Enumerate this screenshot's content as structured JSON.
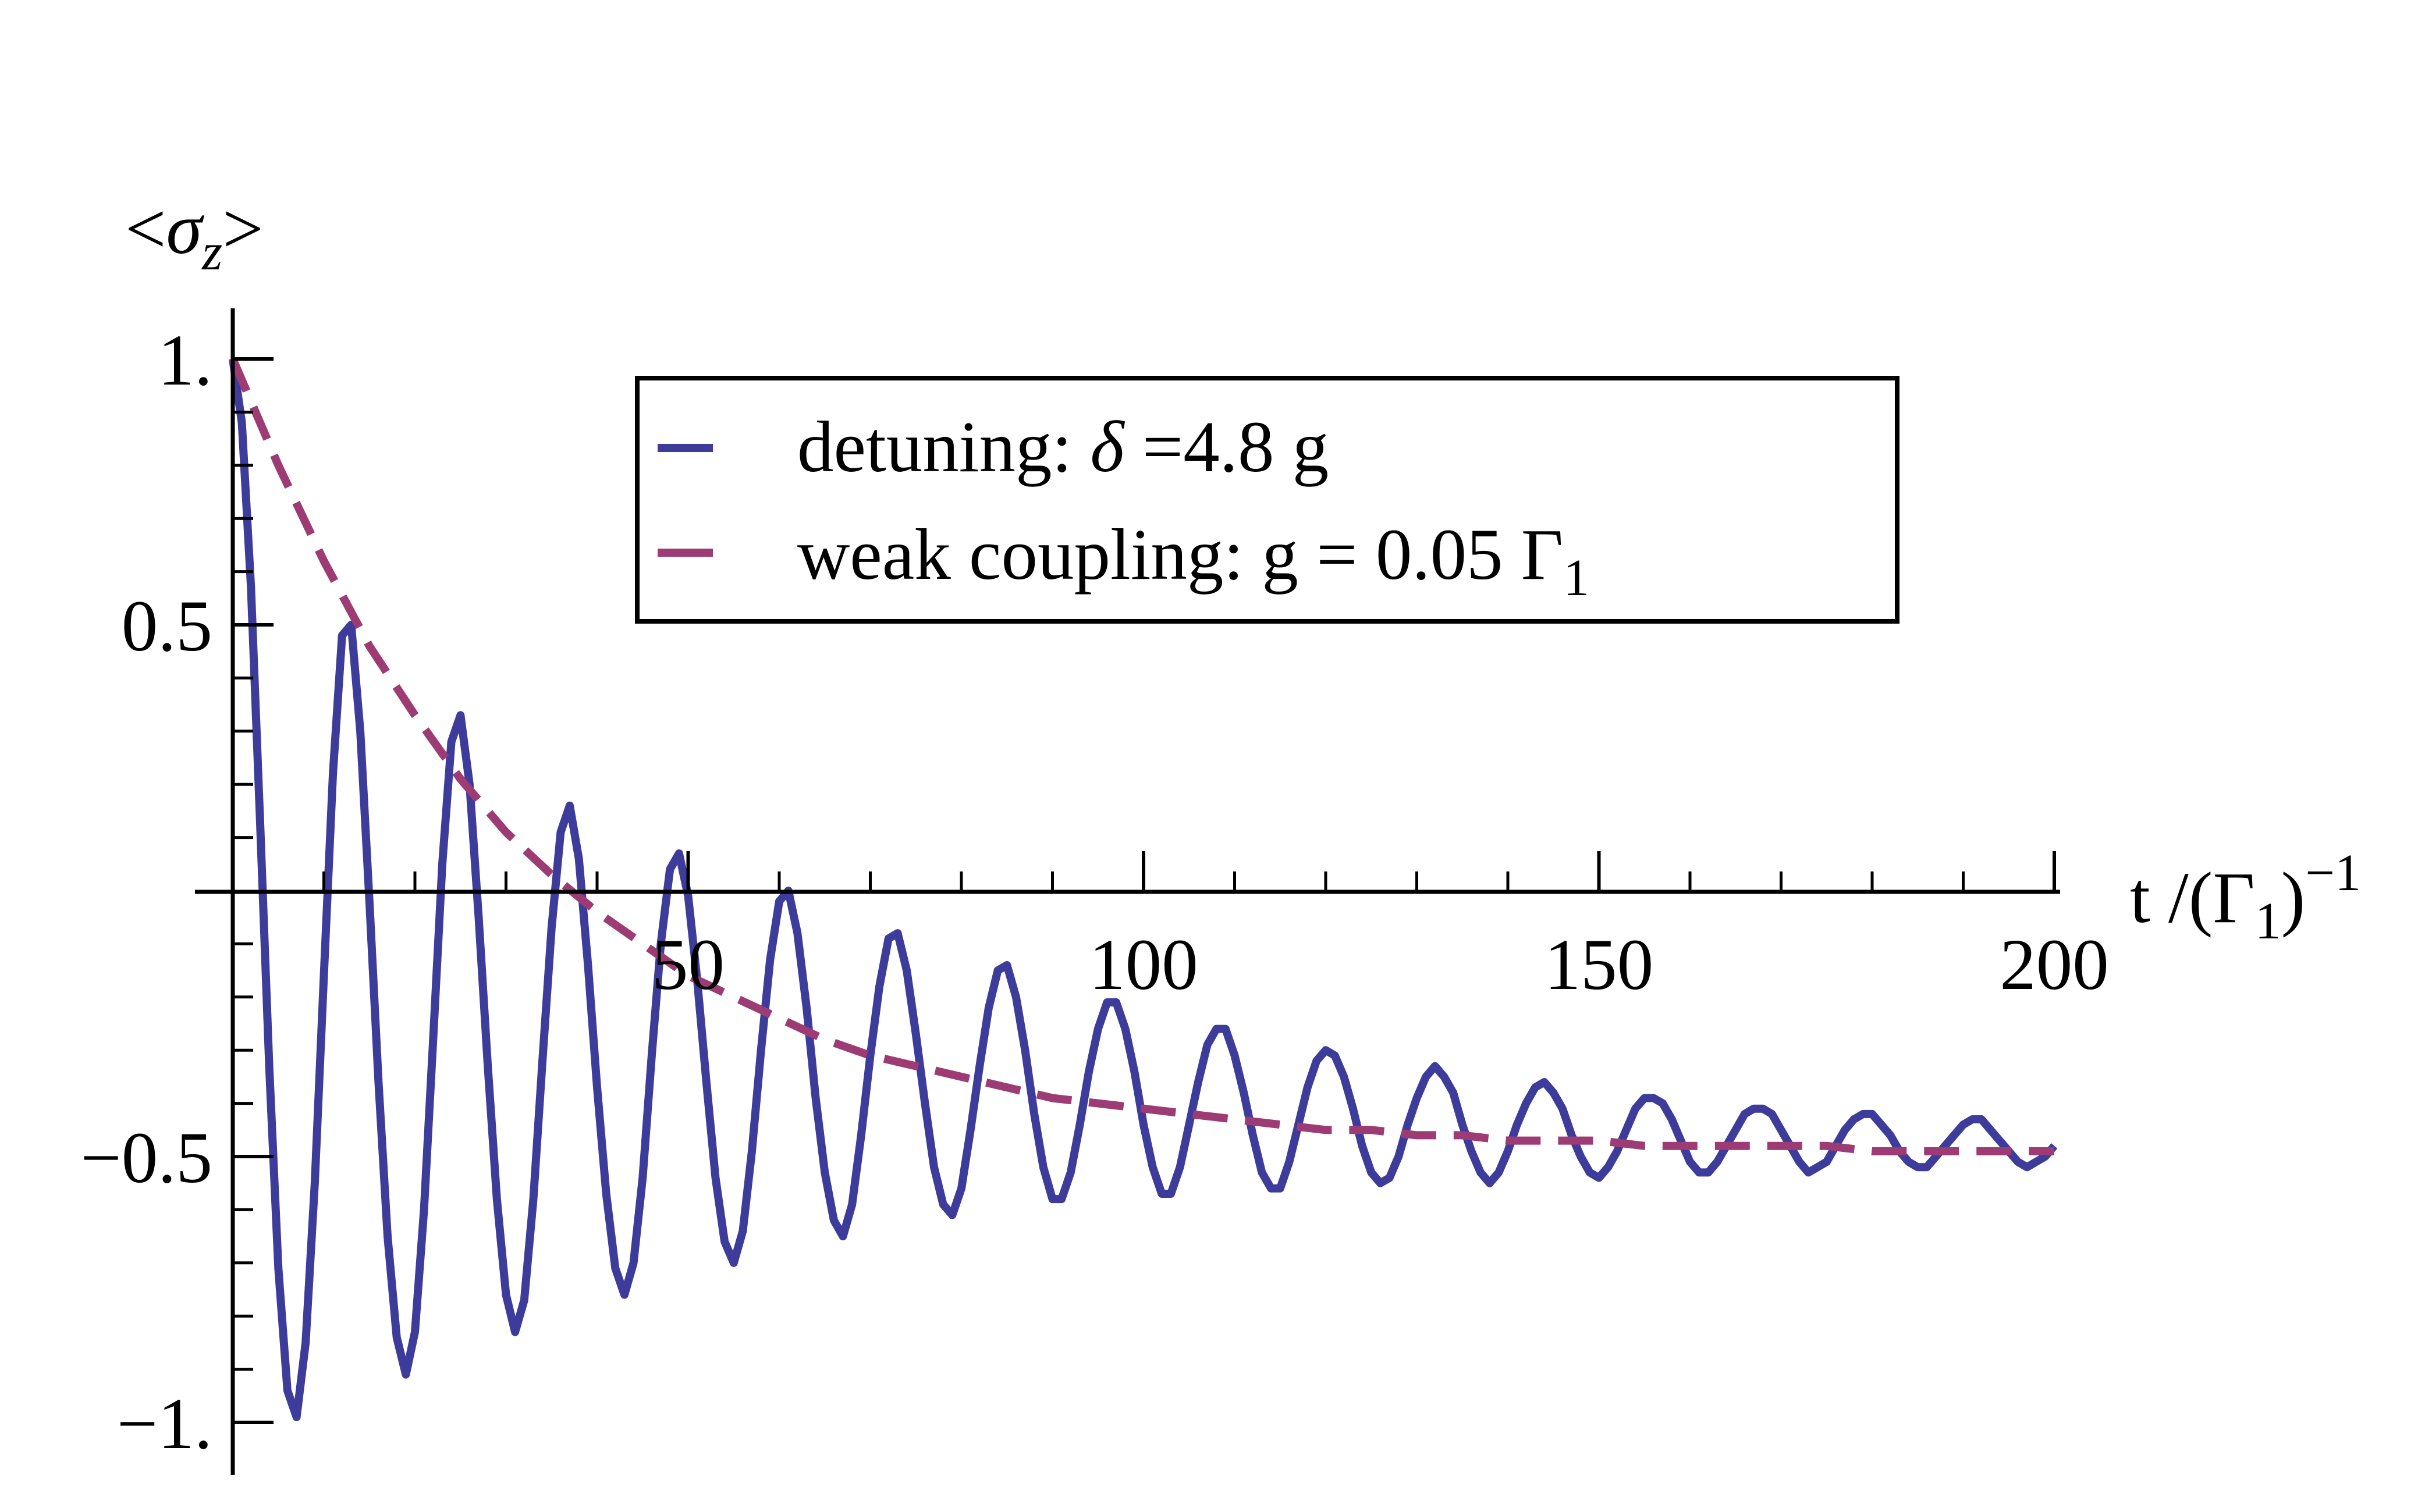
{
  "chart_data": {
    "type": "line",
    "ylabel": {
      "prefix": "<",
      "symbol": "σ",
      "subscript": "z",
      "suffix": ">"
    },
    "xlabel": {
      "prefix": "t /(Γ",
      "subscript": "1",
      "suffix": ")",
      "superscript": "−1"
    },
    "xlim": [
      0,
      200
    ],
    "ylim": [
      -1,
      1
    ],
    "x_ticks": [
      {
        "value": 50,
        "label": "50"
      },
      {
        "value": 100,
        "label": "100"
      },
      {
        "value": 150,
        "label": "150"
      },
      {
        "value": 200,
        "label": "200"
      }
    ],
    "y_ticks": [
      {
        "value": 1,
        "label": "1."
      },
      {
        "value": 0.5,
        "label": "0.5"
      },
      {
        "value": -0.5,
        "label": "−0.5"
      },
      {
        "value": -1,
        "label": "−1."
      }
    ],
    "x_minor_step": 10,
    "y_minor_step": 0.1,
    "grid": false,
    "legend_position": "top-center",
    "series": [
      {
        "label": {
          "prefix": "detuning: ",
          "symbol": "δ",
          "suffix": " =4.8 g"
        },
        "color": "#3d3c9b",
        "style": "solid",
        "envelope": "(1+e^(-t/40))/2",
        "period": 15.7,
        "damping_time": 38,
        "x": [
          0,
          1,
          2,
          3,
          4,
          5,
          6,
          7,
          8,
          9,
          10,
          11,
          12,
          13,
          14,
          15,
          16,
          17,
          18,
          19,
          20,
          21,
          22,
          23,
          24,
          25,
          26,
          27,
          28,
          29,
          30,
          31,
          32,
          33,
          34,
          35,
          36,
          37,
          38,
          39,
          40,
          41,
          42,
          43,
          44,
          45,
          46,
          47,
          48,
          49,
          50,
          51,
          52,
          53,
          54,
          55,
          56,
          57,
          58,
          59,
          60,
          61,
          62,
          63,
          64,
          65,
          66,
          67,
          68,
          69,
          70,
          71,
          72,
          73,
          74,
          75,
          76,
          77,
          78,
          79,
          80,
          81,
          82,
          83,
          84,
          85,
          86,
          87,
          88,
          89,
          90,
          91,
          92,
          93,
          94,
          95,
          96,
          97,
          98,
          99,
          100,
          101,
          102,
          103,
          104,
          105,
          106,
          107,
          108,
          109,
          110,
          111,
          112,
          113,
          114,
          115,
          116,
          117,
          118,
          119,
          120,
          121,
          122,
          123,
          124,
          125,
          126,
          127,
          128,
          129,
          130,
          131,
          132,
          133,
          134,
          135,
          136,
          137,
          138,
          139,
          140,
          141,
          142,
          143,
          144,
          145,
          146,
          147,
          148,
          149,
          150,
          151,
          152,
          153,
          154,
          155,
          156,
          157,
          158,
          159,
          160,
          161,
          162,
          163,
          164,
          165,
          166,
          167,
          168,
          169,
          170,
          171,
          172,
          173,
          174,
          175,
          176,
          177,
          178,
          179,
          180,
          181,
          182,
          183,
          184,
          185,
          186,
          187,
          188,
          189,
          190,
          191,
          192,
          193,
          194,
          195,
          196,
          197,
          198,
          199,
          200
        ],
        "y": [
          1.0,
          0.88,
          0.57,
          0.13,
          -0.33,
          -0.71,
          -0.94,
          -0.99,
          -0.85,
          -0.55,
          -0.16,
          0.22,
          0.48,
          0.5,
          0.3,
          -0.02,
          -0.36,
          -0.65,
          -0.84,
          -0.91,
          -0.83,
          -0.6,
          -0.28,
          0.05,
          0.28,
          0.33,
          0.2,
          -0.05,
          -0.33,
          -0.58,
          -0.76,
          -0.83,
          -0.77,
          -0.58,
          -0.32,
          -0.07,
          0.11,
          0.16,
          0.06,
          -0.14,
          -0.37,
          -0.57,
          -0.71,
          -0.76,
          -0.7,
          -0.54,
          -0.31,
          -0.1,
          0.04,
          0.07,
          -0.01,
          -0.17,
          -0.36,
          -0.54,
          -0.66,
          -0.7,
          -0.64,
          -0.49,
          -0.3,
          -0.13,
          -0.02,
          0.0,
          -0.08,
          -0.22,
          -0.39,
          -0.53,
          -0.62,
          -0.65,
          -0.59,
          -0.46,
          -0.31,
          -0.18,
          -0.09,
          -0.08,
          -0.15,
          -0.27,
          -0.4,
          -0.52,
          -0.59,
          -0.61,
          -0.56,
          -0.45,
          -0.33,
          -0.22,
          -0.15,
          -0.14,
          -0.2,
          -0.3,
          -0.42,
          -0.52,
          -0.58,
          -0.58,
          -0.53,
          -0.44,
          -0.34,
          -0.26,
          -0.21,
          -0.21,
          -0.26,
          -0.34,
          -0.44,
          -0.52,
          -0.57,
          -0.57,
          -0.52,
          -0.44,
          -0.36,
          -0.29,
          -0.26,
          -0.26,
          -0.31,
          -0.38,
          -0.46,
          -0.53,
          -0.56,
          -0.56,
          -0.51,
          -0.44,
          -0.37,
          -0.32,
          -0.3,
          -0.31,
          -0.35,
          -0.41,
          -0.48,
          -0.53,
          -0.55,
          -0.54,
          -0.5,
          -0.44,
          -0.39,
          -0.35,
          -0.33,
          -0.35,
          -0.38,
          -0.44,
          -0.49,
          -0.53,
          -0.55,
          -0.53,
          -0.49,
          -0.44,
          -0.4,
          -0.37,
          -0.36,
          -0.38,
          -0.41,
          -0.46,
          -0.5,
          -0.53,
          -0.54,
          -0.52,
          -0.49,
          -0.45,
          -0.41,
          -0.39,
          -0.39,
          -0.4,
          -0.43,
          -0.47,
          -0.51,
          -0.53,
          -0.53,
          -0.51,
          -0.48,
          -0.45,
          -0.42,
          -0.41,
          -0.41,
          -0.42,
          -0.45,
          -0.48,
          -0.51,
          -0.53,
          -0.52,
          -0.51,
          -0.48,
          -0.45,
          -0.43,
          -0.42,
          -0.42,
          -0.44,
          -0.46,
          -0.49,
          -0.51,
          -0.52,
          -0.52,
          -0.5,
          -0.48,
          -0.46,
          -0.44,
          -0.43,
          -0.43,
          -0.45,
          -0.47,
          -0.49,
          -0.51,
          -0.52,
          -0.51,
          -0.5,
          -0.48
        ]
      },
      {
        "label": {
          "prefix": "weak coupling: g = 0.05 Γ",
          "subscript": "1"
        },
        "color": "#9c3b74",
        "style": "dashed",
        "x": [
          0,
          5,
          10,
          15,
          20,
          25,
          30,
          35,
          40,
          45,
          50,
          55,
          60,
          65,
          70,
          75,
          80,
          85,
          90,
          95,
          100,
          105,
          110,
          115,
          120,
          125,
          130,
          135,
          140,
          145,
          150,
          155,
          160,
          165,
          170,
          175,
          180,
          185,
          190,
          195,
          200
        ],
        "y": [
          1.0,
          0.8,
          0.62,
          0.46,
          0.33,
          0.21,
          0.11,
          0.03,
          -0.04,
          -0.1,
          -0.16,
          -0.2,
          -0.24,
          -0.28,
          -0.31,
          -0.33,
          -0.35,
          -0.37,
          -0.39,
          -0.4,
          -0.41,
          -0.42,
          -0.43,
          -0.44,
          -0.45,
          -0.45,
          -0.46,
          -0.46,
          -0.47,
          -0.47,
          -0.47,
          -0.48,
          -0.48,
          -0.48,
          -0.48,
          -0.48,
          -0.49,
          -0.49,
          -0.49,
          -0.49,
          -0.49
        ]
      }
    ]
  }
}
